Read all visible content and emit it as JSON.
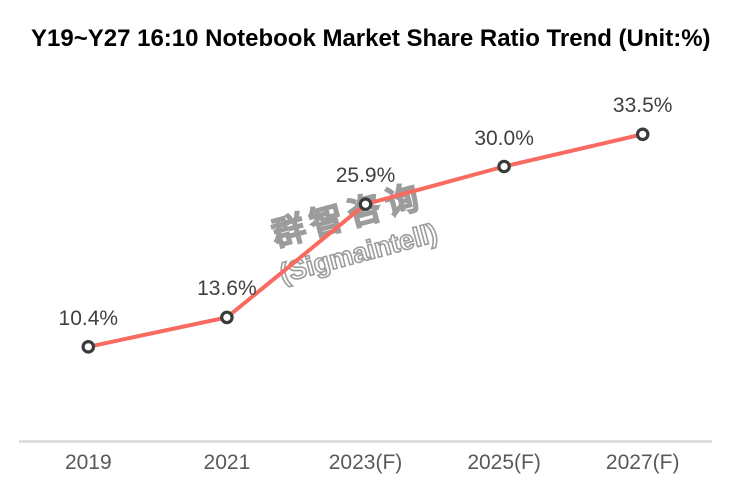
{
  "title": "Y19~Y27 16:10 Notebook Market Share Ratio Trend (Unit:%)",
  "watermark": {
    "line1": "群智咨询",
    "line2": "(Sigmaintell)"
  },
  "colors": {
    "background": "#FFFFFF",
    "title_text": "#000000",
    "line": "#F96A60",
    "marker_stroke": "#3B3B3B",
    "marker_fill": "#FFFFFF",
    "axis_line": "#D9D9D9",
    "data_label_text": "#404040",
    "tick_label_text": "#595959",
    "watermark": "#9C9C9C"
  },
  "chart_data": {
    "type": "line",
    "title": "Y19~Y27 16:10 Notebook Market Share Ratio Trend (Unit:%)",
    "unit": "%",
    "categories": [
      "2019",
      "2021",
      "2023(F)",
      "2025(F)",
      "2027(F)"
    ],
    "values": [
      10.4,
      13.6,
      25.9,
      30.0,
      33.5
    ],
    "point_labels": [
      "10.4%",
      "13.6%",
      "25.9%",
      "30.0%",
      "33.5%"
    ],
    "xlabel": "",
    "ylabel": "",
    "ylim": [
      0,
      40
    ],
    "grid": false,
    "legend": false,
    "data_labels": true,
    "marker_style": "open-circle",
    "x_axis_line": true,
    "y_axis_line": false
  }
}
